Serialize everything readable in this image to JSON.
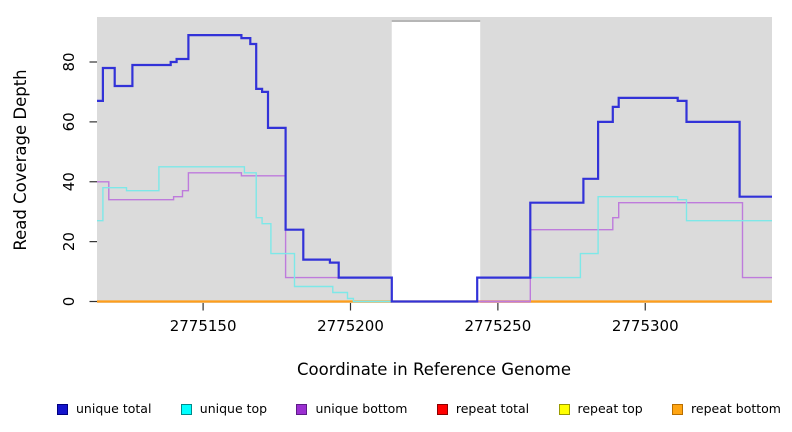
{
  "figure": {
    "xlabel": "Coordinate in Reference Genome",
    "ylabel": "Read Coverage Depth"
  },
  "legend": {
    "items": [
      {
        "label": "unique total",
        "fill": "#1414CC",
        "border": "#000080"
      },
      {
        "label": "unique top",
        "fill": "#00FFFF",
        "border": "#008B8B"
      },
      {
        "label": "unique bottom",
        "fill": "#9B2FD1",
        "border": "#5E1C87"
      },
      {
        "label": "repeat total",
        "fill": "#FF0000",
        "border": "#8B0000"
      },
      {
        "label": "repeat top",
        "fill": "#FFFF00",
        "border": "#9A9A00"
      },
      {
        "label": "repeat bottom",
        "fill": "#FFA513",
        "border": "#B86E00"
      }
    ]
  },
  "chart_data": {
    "type": "line",
    "step": true,
    "title": "",
    "xlabel": "Coordinate in Reference Genome",
    "ylabel": "Read Coverage Depth",
    "xlim": [
      2775114,
      2775343
    ],
    "ylim": [
      0,
      95
    ],
    "x_ticks": [
      2775150,
      2775200,
      2775250,
      2775300
    ],
    "y_ticks": [
      0,
      20,
      40,
      60,
      80
    ],
    "grid": false,
    "legend_position": "bottom",
    "background_regions": [
      [
        2775114,
        2775214
      ],
      [
        2775244,
        2775343
      ]
    ],
    "gap_region": [
      2775214,
      2775244
    ],
    "style": {
      "panel_fill": "#DBDBDB",
      "gap_fill": "#FFFFFF",
      "gap_border": "#A9A9A9",
      "tick_color": "#333333",
      "text_color": "#000000"
    },
    "series": [
      {
        "name": "unique total",
        "color": "#3232D8",
        "width": 2.2,
        "z": 7,
        "points": [
          [
            2775114,
            67
          ],
          [
            2775116,
            78
          ],
          [
            2775120,
            72
          ],
          [
            2775126,
            79
          ],
          [
            2775139,
            80
          ],
          [
            2775141,
            81
          ],
          [
            2775145,
            89
          ],
          [
            2775163,
            88
          ],
          [
            2775166,
            86
          ],
          [
            2775168,
            71
          ],
          [
            2775170,
            70
          ],
          [
            2775172,
            58
          ],
          [
            2775178,
            24
          ],
          [
            2775184,
            14
          ],
          [
            2775193,
            13
          ],
          [
            2775196,
            8
          ],
          [
            2775214,
            0
          ],
          [
            2775243,
            8
          ],
          [
            2775261,
            33
          ],
          [
            2775279,
            41
          ],
          [
            2775284,
            60
          ],
          [
            2775289,
            65
          ],
          [
            2775291,
            68
          ],
          [
            2775311,
            67
          ],
          [
            2775314,
            60
          ],
          [
            2775332,
            35
          ]
        ]
      },
      {
        "name": "unique top",
        "color": "#7DE8E8",
        "width": 1.4,
        "z": 6,
        "points": [
          [
            2775114,
            27
          ],
          [
            2775116,
            38
          ],
          [
            2775124,
            37
          ],
          [
            2775135,
            45
          ],
          [
            2775164,
            43
          ],
          [
            2775168,
            28
          ],
          [
            2775170,
            26
          ],
          [
            2775173,
            16
          ],
          [
            2775181,
            5
          ],
          [
            2775194,
            3
          ],
          [
            2775199,
            1
          ],
          [
            2775201,
            0
          ],
          [
            2775243,
            8
          ],
          [
            2775278,
            16
          ],
          [
            2775284,
            35
          ],
          [
            2775311,
            34
          ],
          [
            2775314,
            27
          ]
        ]
      },
      {
        "name": "unique bottom",
        "color": "#BE7BDC",
        "width": 1.4,
        "z": 5,
        "points": [
          [
            2775114,
            40
          ],
          [
            2775118,
            34
          ],
          [
            2775140,
            35
          ],
          [
            2775143,
            37
          ],
          [
            2775145,
            43
          ],
          [
            2775163,
            42
          ],
          [
            2775178,
            8
          ],
          [
            2775214,
            0
          ],
          [
            2775261,
            24
          ],
          [
            2775289,
            28
          ],
          [
            2775291,
            33
          ],
          [
            2775333,
            8
          ]
        ]
      },
      {
        "name": "repeat total",
        "color": "#FF0000",
        "width": 1.4,
        "z": 2,
        "points": [
          [
            2775114,
            0
          ]
        ]
      },
      {
        "name": "repeat top",
        "color": "#FFFF00",
        "width": 1.4,
        "z": 1,
        "points": [
          [
            2775114,
            0
          ]
        ]
      },
      {
        "name": "repeat bottom",
        "color": "#FF9E1B",
        "width": 2.2,
        "z": 3,
        "points": [
          [
            2775114,
            0
          ]
        ]
      }
    ],
    "blend_artifacts": [
      {
        "x": [
          2775244,
          2775261
        ],
        "y": 0,
        "color": "#DB5877",
        "width": 2,
        "z": 4
      }
    ]
  }
}
